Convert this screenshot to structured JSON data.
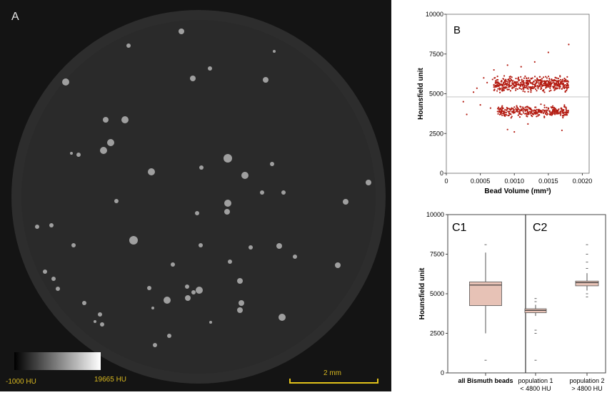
{
  "panel_a": {
    "label": "A",
    "colorbar": {
      "min_label": "-1000 HU",
      "max_label": "19665 HU"
    },
    "scalebar": {
      "label": "2 mm"
    },
    "colors": {
      "background": "#141414",
      "disc": "#2a2a2a",
      "annotation": "#e2c21a"
    }
  },
  "chart_data": [
    {
      "panel": "B",
      "type": "scatter",
      "xlabel": "Bead Volume (mm³)",
      "ylabel": "Hounsfield unit",
      "xlim": [
        0,
        0.0021
      ],
      "ylim": [
        0,
        10000
      ],
      "xticks": [
        "0",
        "0.0005",
        "0.0010",
        "0.0015",
        "0.0020"
      ],
      "yticks": [
        "0",
        "2500",
        "5000",
        "7500",
        "10000"
      ],
      "threshold_line": 4800,
      "marker_color": "#b41e14",
      "clusters": [
        {
          "x_range": [
            0.0007,
            0.0018
          ],
          "y_center": 5600,
          "y_slope_per_unit_x": 400000,
          "y_spread": 350,
          "count": 520
        },
        {
          "x_range": [
            0.00075,
            0.0018
          ],
          "y_center": 3900,
          "y_slope_per_unit_x": 300000,
          "y_spread": 280,
          "count": 330
        }
      ],
      "outliers": [
        [
          0.00025,
          4500
        ],
        [
          0.0003,
          3700
        ],
        [
          0.0004,
          5100
        ],
        [
          0.00045,
          5350
        ],
        [
          0.0005,
          4300
        ],
        [
          0.00055,
          6000
        ],
        [
          0.0006,
          5700
        ],
        [
          0.00065,
          4100
        ],
        [
          0.00068,
          5900
        ],
        [
          0.0007,
          6500
        ],
        [
          0.0011,
          6700
        ],
        [
          0.0015,
          7600
        ],
        [
          0.0018,
          8100
        ],
        [
          0.0009,
          6800
        ],
        [
          0.0013,
          7000
        ],
        [
          0.0009,
          2750
        ],
        [
          0.0012,
          3100
        ],
        [
          0.0017,
          2700
        ],
        [
          0.001,
          2600
        ]
      ]
    },
    {
      "panel": "C",
      "type": "box",
      "ylabel": "Hounsfield unit",
      "ylim": [
        0,
        10000
      ],
      "yticks": [
        "0",
        "2500",
        "5000",
        "7500",
        "10000"
      ],
      "box_color": "#e7c2b6",
      "groups": [
        {
          "sub_panel": "C1",
          "category": "all Bismuth beads",
          "whisker_low": 2500,
          "q1": 4250,
          "median": 5550,
          "q3": 5750,
          "whisker_high": 7600,
          "outliers": [
            800,
            8100
          ]
        },
        {
          "sub_panel": "C2",
          "category": "population 1\n< 4800 HU",
          "whisker_low": 3600,
          "q1": 3800,
          "median": 3950,
          "q3": 4050,
          "whisker_high": 4300,
          "outliers": [
            2500,
            2700,
            4500,
            4700,
            800
          ]
        },
        {
          "sub_panel": "C2",
          "category": "population 2\n> 4800 HU",
          "whisker_low": 5200,
          "q1": 5500,
          "median": 5700,
          "q3": 5800,
          "whisker_high": 6300,
          "outliers": [
            4800,
            5000,
            6600,
            7000,
            7500,
            8100
          ]
        }
      ]
    }
  ]
}
